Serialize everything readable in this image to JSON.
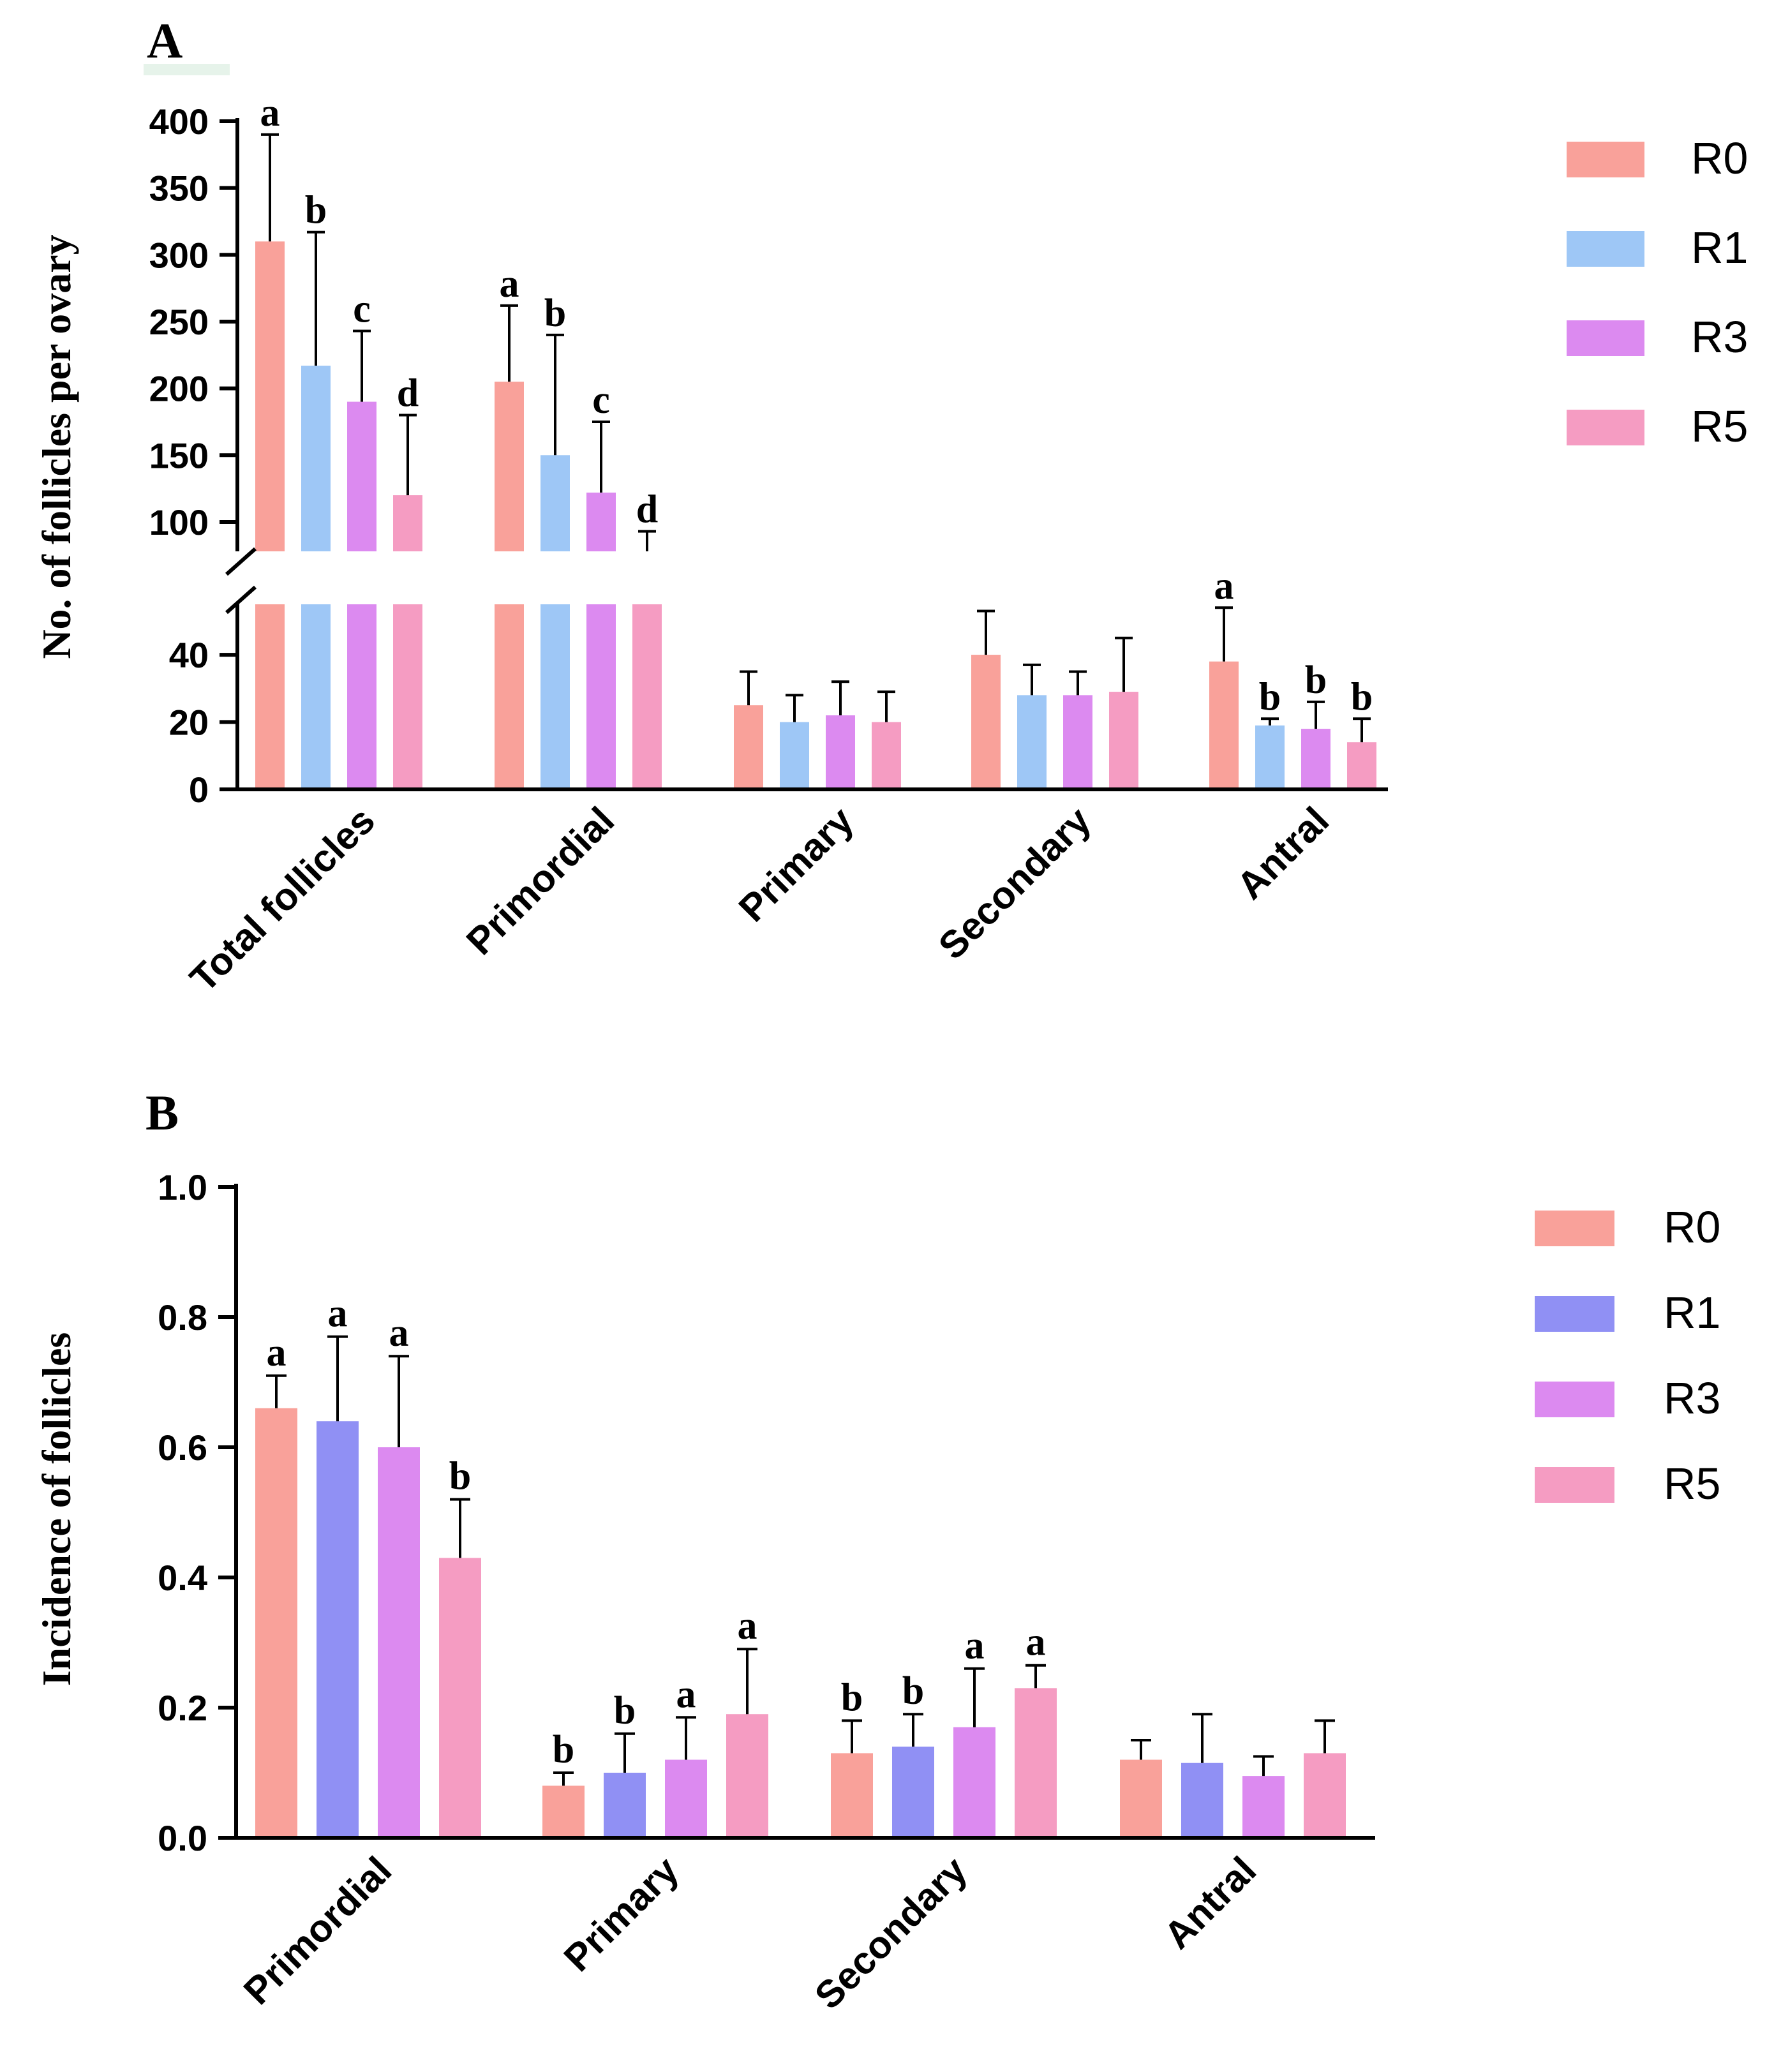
{
  "chart_data": [
    {
      "panel": "A",
      "type": "bar",
      "ylabel": "No. of follicles per ovary",
      "categories": [
        "Total follicles",
        "Primordial",
        "Primary",
        "Secondary",
        "Antral"
      ],
      "series": [
        {
          "name": "R0",
          "color": "#f9a19a",
          "values": [
            310,
            205,
            25,
            40,
            38
          ],
          "errors": [
            80,
            57,
            10,
            13,
            16
          ],
          "letters": [
            "a",
            "a",
            "",
            "",
            "a"
          ]
        },
        {
          "name": "R1",
          "color": "#9ec7f6",
          "values": [
            217,
            150,
            20,
            28,
            19
          ],
          "errors": [
            100,
            90,
            8,
            9,
            2
          ],
          "letters": [
            "b",
            "b",
            "",
            "",
            "b"
          ]
        },
        {
          "name": "R3",
          "color": "#dc8af0",
          "values": [
            190,
            122,
            22,
            28,
            18
          ],
          "errors": [
            53,
            53,
            10,
            7,
            8
          ],
          "letters": [
            "c",
            "c",
            "",
            "",
            "b"
          ]
        },
        {
          "name": "R5",
          "color": "#f59cc2",
          "values": [
            120,
            78,
            20,
            29,
            14
          ],
          "errors": [
            60,
            15,
            9,
            16,
            7
          ],
          "letters": [
            "d",
            "d",
            "",
            "",
            "b"
          ]
        }
      ],
      "axis_break": {
        "lower": [
          0,
          55
        ],
        "upper": [
          78,
          400
        ]
      },
      "lower_ticks": [
        0,
        20,
        40
      ],
      "upper_ticks": [
        100,
        150,
        200,
        250,
        300,
        350,
        400
      ],
      "tick_labels": {
        "0": "0",
        "20": "20",
        "40": "40",
        "100": "100",
        "150": "150",
        "200": "200",
        "250": "250",
        "300": "300",
        "350": "350",
        "400": "400"
      },
      "legend_position": "right"
    },
    {
      "panel": "B",
      "type": "bar",
      "ylabel": "Incidence of follicles",
      "categories": [
        "Primordial",
        "Primary",
        "Secondary",
        "Antral"
      ],
      "ylim": [
        0,
        1.0
      ],
      "ticks": [
        0.0,
        0.2,
        0.4,
        0.6,
        0.8,
        1.0
      ],
      "tick_labels": [
        "0.0",
        "0.2",
        "0.4",
        "0.6",
        "0.8",
        "1.0"
      ],
      "series": [
        {
          "name": "R0",
          "color": "#f9a19a",
          "values": [
            0.66,
            0.08,
            0.13,
            0.12
          ],
          "errors": [
            0.05,
            0.02,
            0.05,
            0.03
          ],
          "letters": [
            "a",
            "b",
            "b",
            ""
          ]
        },
        {
          "name": "R1",
          "color": "#9090f4",
          "values": [
            0.64,
            0.1,
            0.14,
            0.115
          ],
          "errors": [
            0.13,
            0.06,
            0.05,
            0.075
          ],
          "letters": [
            "a",
            "b",
            "b",
            ""
          ]
        },
        {
          "name": "R3",
          "color": "#dc8af0",
          "values": [
            0.6,
            0.12,
            0.17,
            0.095
          ],
          "errors": [
            0.14,
            0.065,
            0.09,
            0.03
          ],
          "letters": [
            "a",
            "a",
            "a",
            ""
          ]
        },
        {
          "name": "R5",
          "color": "#f59cc2",
          "values": [
            0.43,
            0.19,
            0.23,
            0.13
          ],
          "errors": [
            0.09,
            0.1,
            0.035,
            0.05
          ],
          "letters": [
            "b",
            "a",
            "a",
            ""
          ]
        }
      ],
      "legend_position": "right"
    }
  ]
}
